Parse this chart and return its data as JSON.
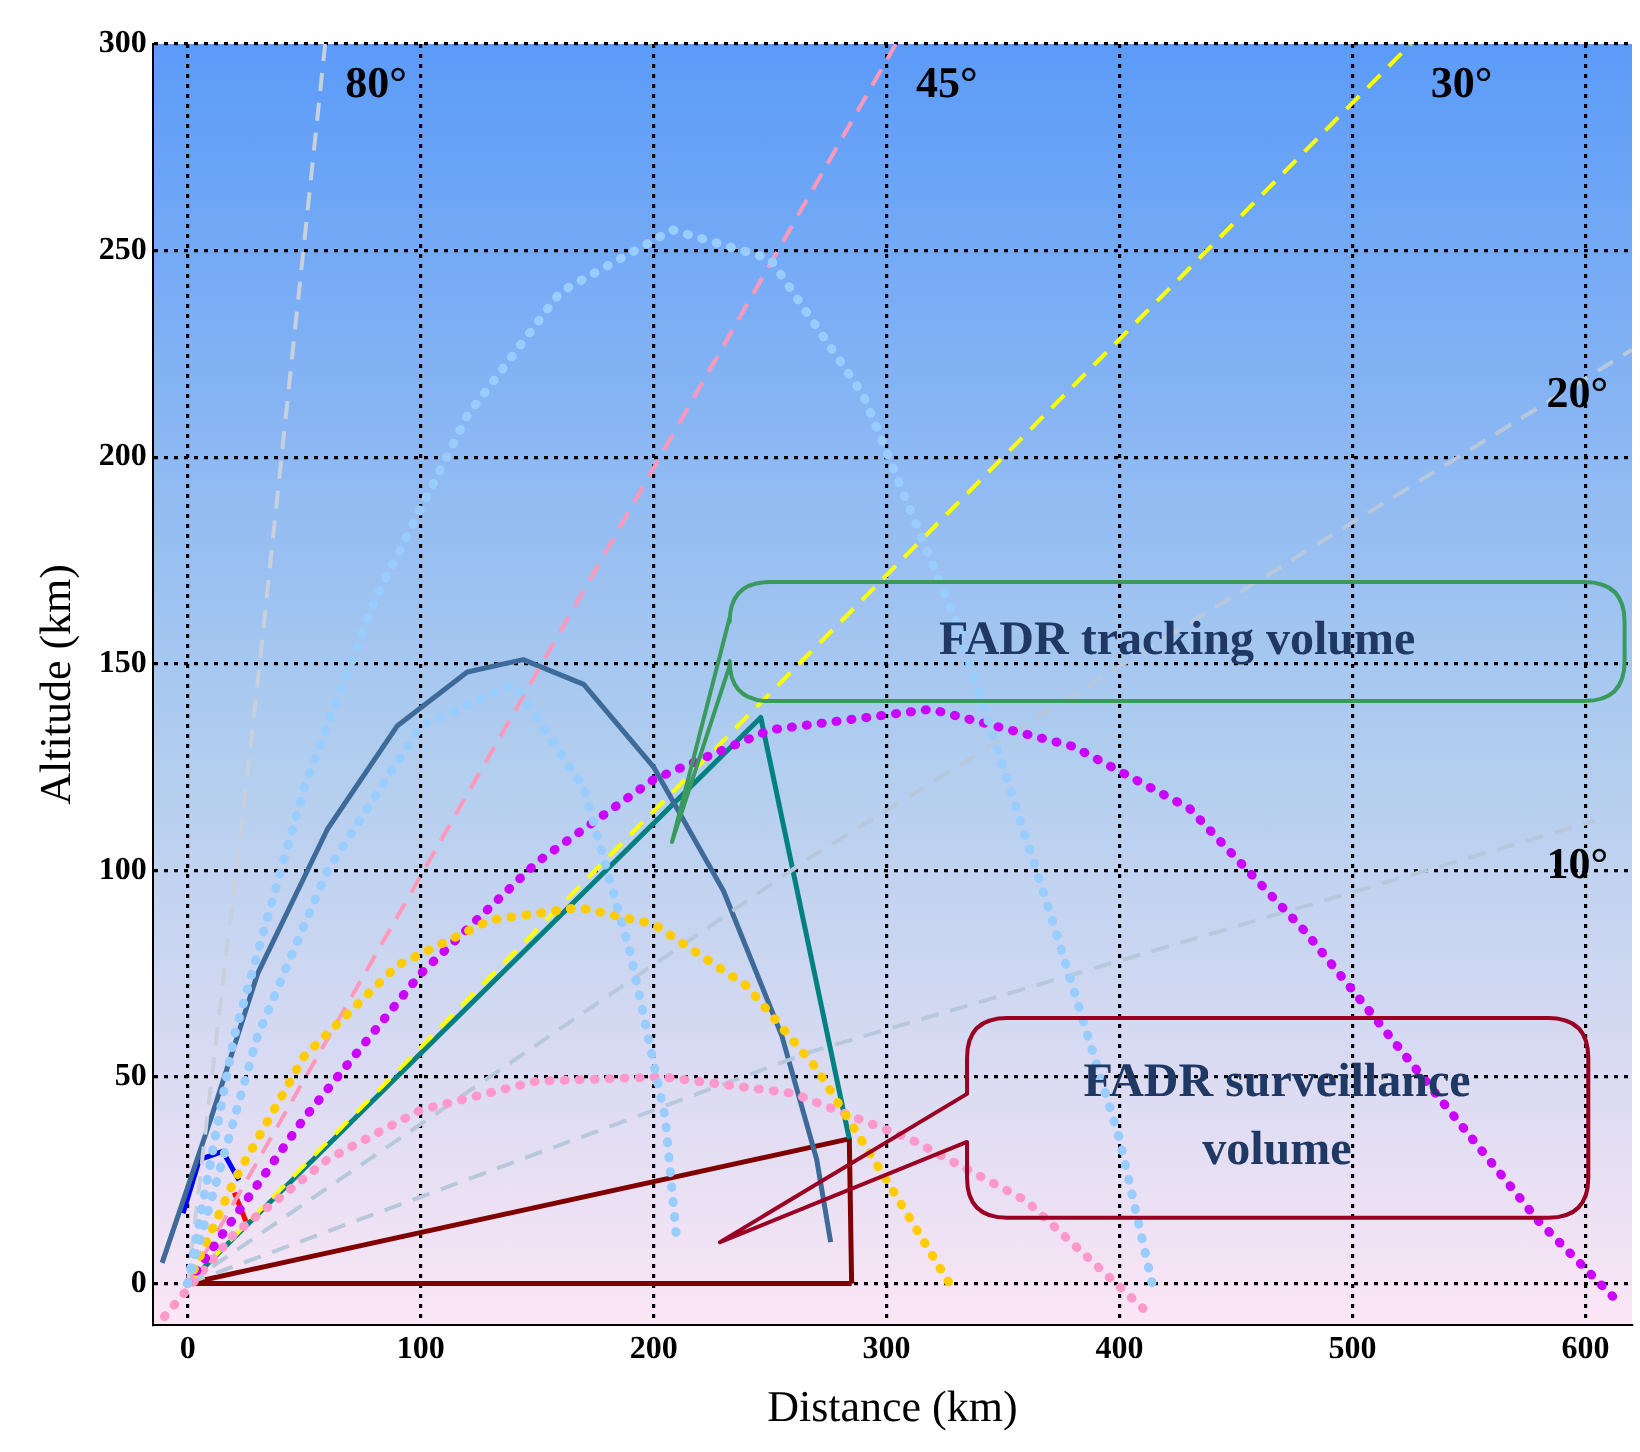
{
  "chart_data": {
    "type": "line",
    "xlabel": "Distance (km)",
    "ylabel": "Altitude (km)",
    "xlim": [
      -15,
      620
    ],
    "ylim": [
      -10,
      300
    ],
    "xticks": [
      0,
      100,
      200,
      300,
      400,
      500,
      600
    ],
    "yticks": [
      0,
      50,
      100,
      150,
      200,
      250,
      300
    ],
    "grid": true,
    "legend": false,
    "marker": "none",
    "series": [
      {
        "name": "80°",
        "color": "#c8d0dc",
        "line_style": "dashed",
        "x": [
          0,
          29,
          59
        ],
        "values": [
          0,
          140,
          300
        ]
      },
      {
        "name": "45°",
        "color": "#ff99bb",
        "line_style": "dashed",
        "x": [
          0,
          304
        ],
        "values": [
          0,
          300
        ]
      },
      {
        "name": "30°",
        "color": "#ffff00",
        "line_style": "dashed",
        "x": [
          0,
          525
        ],
        "values": [
          0,
          300
        ]
      },
      {
        "name": "20°",
        "color": "#b8c8dc",
        "line_style": "dashed",
        "x": [
          0,
          267,
          620
        ],
        "values": [
          0,
          103,
          226
        ]
      },
      {
        "name": "10°",
        "color": "#b8c8dc",
        "line_style": "dashed",
        "x": [
          0,
          267,
          604
        ],
        "values": [
          0,
          56,
          112
        ]
      },
      {
        "color": "#99ccff",
        "line_style": "dotted",
        "x": [
          0,
          20,
          50,
          80,
          120,
          160,
          208,
          250,
          290,
          330,
          370,
          400,
          414
        ],
        "values": [
          0,
          60,
          120,
          165,
          210,
          240,
          255,
          248,
          215,
          160,
          90,
          35,
          0
        ]
      },
      {
        "color": "#99ccff",
        "line_style": "dotted",
        "x": [
          0,
          30,
          60,
          100,
          140,
          170,
          190,
          205,
          210
        ],
        "values": [
          0,
          60,
          100,
          135,
          145,
          120,
          80,
          40,
          10
        ]
      },
      {
        "color": "#3d6a99",
        "line_style": "solid",
        "x": [
          -11,
          10,
          30,
          60,
          90,
          120,
          144,
          170,
          200,
          230,
          255,
          270,
          276
        ],
        "values": [
          5,
          40,
          75,
          110,
          135,
          148,
          151,
          145,
          125,
          95,
          60,
          30,
          10
        ]
      },
      {
        "color": "#ffcc00",
        "line_style": "dotted",
        "x": [
          0,
          20,
          50,
          90,
          130,
          168,
          200,
          240,
          270,
          300,
          327
        ],
        "values": [
          0,
          25,
          55,
          77,
          88,
          91,
          87,
          72,
          52,
          25,
          0
        ]
      },
      {
        "color": "#cc00ff",
        "line_style": "dotted",
        "x": [
          0,
          50,
          100,
          150,
          200,
          250,
          319,
          380,
          430,
          480,
          530,
          580,
          615
        ],
        "values": [
          0,
          40,
          75,
          102,
          122,
          134,
          139,
          130,
          115,
          85,
          50,
          15,
          -5
        ]
      },
      {
        "color": "#ff99cc",
        "line_style": "dotted",
        "x": [
          -10,
          20,
          60,
          100,
          150,
          204,
          260,
          310,
          360,
          412
        ],
        "values": [
          -8,
          12,
          30,
          42,
          49,
          50,
          46,
          35,
          20,
          -7
        ]
      },
      {
        "color": "#008080",
        "line_style": "solid",
        "x": [
          0,
          246,
          284
        ],
        "values": [
          0,
          137,
          35
        ]
      },
      {
        "color": "#800000",
        "line_style": "solid",
        "x": [
          0,
          284,
          285
        ],
        "values": [
          0,
          35,
          0
        ]
      },
      {
        "color": "#800000",
        "line_style": "solid",
        "x": [
          0,
          285
        ],
        "values": [
          0,
          0
        ]
      },
      {
        "color": "#0000ff",
        "line_style": "solid",
        "x": [
          -2,
          5,
          15,
          22
        ],
        "values": [
          17,
          30,
          32,
          25
        ]
      },
      {
        "color": "#ff0000",
        "line_style": "solid",
        "x": [
          20,
          25
        ],
        "values": [
          22,
          15
        ]
      }
    ],
    "annotations": [
      "FADR tracking volume",
      "FADR surveillance volume"
    ]
  }
}
